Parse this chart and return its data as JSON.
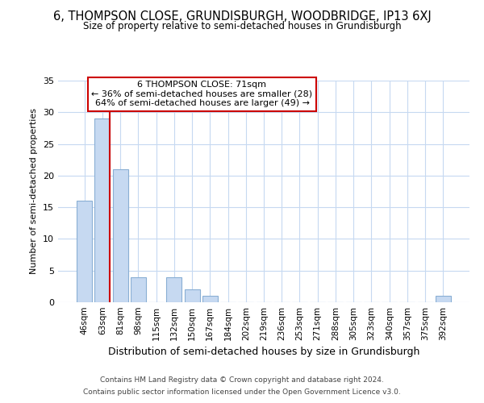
{
  "title": "6, THOMPSON CLOSE, GRUNDISBURGH, WOODBRIDGE, IP13 6XJ",
  "subtitle": "Size of property relative to semi-detached houses in Grundisburgh",
  "xlabel": "Distribution of semi-detached houses by size in Grundisburgh",
  "ylabel": "Number of semi-detached properties",
  "bar_labels": [
    "46sqm",
    "63sqm",
    "81sqm",
    "98sqm",
    "115sqm",
    "132sqm",
    "150sqm",
    "167sqm",
    "184sqm",
    "202sqm",
    "219sqm",
    "236sqm",
    "253sqm",
    "271sqm",
    "288sqm",
    "305sqm",
    "323sqm",
    "340sqm",
    "357sqm",
    "375sqm",
    "392sqm"
  ],
  "bar_values": [
    16,
    29,
    21,
    4,
    0,
    4,
    2,
    1,
    0,
    0,
    0,
    0,
    0,
    0,
    0,
    0,
    0,
    0,
    0,
    0,
    1
  ],
  "bar_color": "#c6d9f1",
  "bar_edge_color": "#8aafd4",
  "ylim": [
    0,
    35
  ],
  "yticks": [
    0,
    5,
    10,
    15,
    20,
    25,
    30,
    35
  ],
  "property_line_color": "#cc0000",
  "annotation_title": "6 THOMPSON CLOSE: 71sqm",
  "annotation_line1": "← 36% of semi-detached houses are smaller (28)",
  "annotation_line2": "64% of semi-detached houses are larger (49) →",
  "annotation_box_color": "#ffffff",
  "annotation_box_edge": "#cc0000",
  "footer_line1": "Contains HM Land Registry data © Crown copyright and database right 2024.",
  "footer_line2": "Contains public sector information licensed under the Open Government Licence v3.0.",
  "background_color": "#ffffff",
  "grid_color": "#c6d9f1"
}
